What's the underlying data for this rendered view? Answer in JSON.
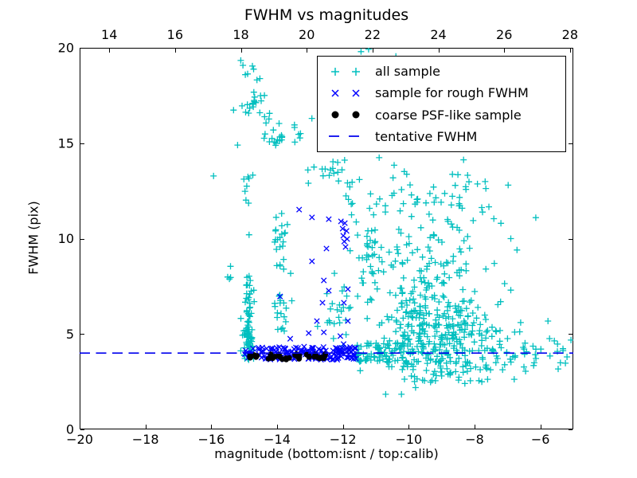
{
  "figure": {
    "title": "FWHM vs magnitudes",
    "xlabel": "magnitude (bottom:isnt / top:calib)",
    "ylabel": "FWHM (pix)",
    "background": "#ffffff"
  },
  "chart_data": {
    "type": "scatter",
    "title": "FWHM vs magnitudes",
    "xlabel": "magnitude (bottom:isnt / top:calib)",
    "ylabel": "FWHM (pix)",
    "xlim": [
      -20,
      -5
    ],
    "ylim": [
      0,
      20
    ],
    "grid": false,
    "bottom_xticks": [
      -20,
      -18,
      -16,
      -14,
      -12,
      -10,
      -8,
      -6
    ],
    "top_xticks": [
      14,
      16,
      18,
      20,
      22,
      24,
      26,
      28
    ],
    "top_axis_offset": 33.1,
    "yticks": [
      0,
      5,
      10,
      15,
      20
    ],
    "seed": 13,
    "legend": {
      "position": "upper right",
      "entries": [
        {
          "label": "all sample",
          "marker": "plus",
          "color": "#00bfbf"
        },
        {
          "label": "sample for rough FWHM",
          "marker": "cross",
          "color": "#0000ff"
        },
        {
          "label": "coarse PSF-like sample",
          "marker": "dot",
          "color": "#000000"
        },
        {
          "label": "tentative FWHM",
          "marker": "dash",
          "color": "#0000ee"
        }
      ]
    },
    "tentative_fwhm_line": {
      "y": 4.0,
      "color": "#0000ee",
      "dash": [
        13,
        7.5
      ]
    },
    "series": [
      {
        "name": "all sample",
        "marker": "plus",
        "color": "#00bfbf",
        "clusters": [
          {
            "shape": "gauss",
            "cx": -14.97,
            "cy": 18.85,
            "sx": 0.1,
            "sy": 0.28,
            "n": 6,
            "ymax": 19.95
          },
          {
            "shape": "gauss",
            "cx": -14.57,
            "cy": 18.2,
            "sx": 0.06,
            "sy": 0.14,
            "n": 2
          },
          {
            "shape": "gauss",
            "cx": -14.62,
            "cy": 17.35,
            "sx": 0.1,
            "sy": 0.16,
            "n": 9
          },
          {
            "shape": "gauss",
            "cx": -14.88,
            "cy": 16.8,
            "sx": 0.16,
            "sy": 0.12,
            "n": 8
          },
          {
            "shape": "gauss",
            "cx": -14.38,
            "cy": 16.4,
            "sx": 0.1,
            "sy": 0.14,
            "n": 5
          },
          {
            "shape": "gauss",
            "cx": -13.95,
            "cy": 15.45,
            "sx": 0.14,
            "sy": 0.3,
            "n": 10
          },
          {
            "shape": "gauss",
            "cx": -14.25,
            "cy": 15.15,
            "sx": 0.18,
            "sy": 0.2,
            "n": 6
          },
          {
            "shape": "gauss",
            "cx": -14.95,
            "cy": 12.55,
            "sx": 0.1,
            "sy": 0.55,
            "n": 8
          },
          {
            "shape": "gauss",
            "cx": -15.45,
            "cy": 8.1,
            "sx": 0.1,
            "sy": 0.4,
            "n": 4
          },
          {
            "shape": "gauss",
            "cx": -14.9,
            "cy": 6.2,
            "sx": 0.1,
            "sy": 1.35,
            "n": 45,
            "ymin": 3.65
          },
          {
            "shape": "gauss",
            "cx": -14.88,
            "cy": 4.55,
            "sx": 0.09,
            "sy": 0.4,
            "n": 40,
            "ymin": 3.65
          },
          {
            "shape": "gauss",
            "cx": -13.9,
            "cy": 9.9,
            "sx": 0.12,
            "sy": 1.0,
            "n": 22
          },
          {
            "shape": "gauss",
            "cx": -13.86,
            "cy": 5.9,
            "sx": 0.12,
            "sy": 0.85,
            "n": 18,
            "ymin": 3.7
          },
          {
            "shape": "gauss",
            "cx": -13.3,
            "cy": 15.7,
            "sx": 0.16,
            "sy": 0.35,
            "n": 7
          },
          {
            "shape": "gauss",
            "cx": -12.55,
            "cy": 13.8,
            "sx": 0.28,
            "sy": 0.5,
            "n": 9
          },
          {
            "shape": "gauss",
            "cx": -11.95,
            "cy": 13.55,
            "sx": 0.3,
            "sy": 0.4,
            "n": 8
          },
          {
            "shape": "gauss",
            "cx": -11.35,
            "cy": 12.2,
            "sx": 0.3,
            "sy": 0.4,
            "n": 8
          },
          {
            "shape": "gauss",
            "cx": -11.3,
            "cy": 8.5,
            "sx": 0.2,
            "sy": 1.4,
            "n": 30
          },
          {
            "shape": "gauss",
            "cx": -12.2,
            "cy": 6.0,
            "sx": 0.35,
            "sy": 0.95,
            "n": 25
          },
          {
            "shape": "gauss",
            "cx": -9.2,
            "cy": 5.0,
            "sx": 0.85,
            "sy": 1.25,
            "n": 270,
            "ymin": 1.9
          },
          {
            "shape": "gauss",
            "cx": -9.35,
            "cy": 8.6,
            "sx": 0.95,
            "sy": 1.5,
            "n": 115
          },
          {
            "shape": "gauss",
            "cx": -9.5,
            "cy": 12.3,
            "sx": 1.0,
            "sy": 1.2,
            "n": 45
          },
          {
            "shape": "uniform",
            "x0": -11.62,
            "x1": -10.0,
            "y0": 3.5,
            "y1": 4.55,
            "n": 80
          },
          {
            "shape": "gauss",
            "cx": -6.8,
            "cy": 4.1,
            "sx": 0.75,
            "sy": 0.55,
            "n": 50
          },
          {
            "shape": "uniform",
            "x0": -10.8,
            "x1": -6.6,
            "y0": 2.55,
            "y1": 3.6,
            "n": 40
          }
        ],
        "points": [
          [
            -15.93,
            13.28
          ],
          [
            -15.2,
            14.9
          ],
          [
            -11.45,
            19.8
          ],
          [
            -11.22,
            19.92
          ],
          [
            -10.39,
            19.55
          ],
          [
            -10.7,
            1.84
          ],
          [
            -10.22,
            1.84
          ],
          [
            -6.98,
            12.8
          ],
          [
            -6.14,
            11.1
          ],
          [
            -7.2,
            10.8
          ],
          [
            -6.9,
            10.0
          ],
          [
            -7.4,
            8.7
          ],
          [
            -6.9,
            7.3
          ],
          [
            -6.6,
            5.6
          ],
          [
            -5.77,
            5.68
          ],
          [
            -5.72,
            4.76
          ],
          [
            -5.48,
            4.47
          ],
          [
            -5.31,
            4.13
          ],
          [
            -5.19,
            3.8
          ],
          [
            -5.07,
            4.68
          ],
          [
            -5.24,
            3.47
          ],
          [
            -5.46,
            3.17
          ],
          [
            -6.45,
            3.05
          ],
          [
            -13.8,
            8.4
          ],
          [
            -13.05,
            12.9
          ]
        ]
      },
      {
        "name": "sample for rough FWHM",
        "marker": "cross",
        "color": "#0000ff",
        "clusters": [
          {
            "shape": "uniform",
            "x0": -15.02,
            "x1": -11.6,
            "y0": 3.65,
            "y1": 4.32,
            "n": 150
          }
        ],
        "points": [
          [
            -13.33,
            11.52
          ],
          [
            -12.94,
            11.11
          ],
          [
            -12.43,
            11.02
          ],
          [
            -12.06,
            10.9
          ],
          [
            -11.94,
            10.81
          ],
          [
            -12.01,
            10.52
          ],
          [
            -11.89,
            10.4
          ],
          [
            -11.99,
            10.15
          ],
          [
            -11.87,
            9.98
          ],
          [
            -11.96,
            9.85
          ],
          [
            -11.92,
            9.56
          ],
          [
            -12.5,
            9.48
          ],
          [
            -12.94,
            8.81
          ],
          [
            -13.91,
            6.97
          ],
          [
            -12.58,
            7.81
          ],
          [
            -12.43,
            7.27
          ],
          [
            -11.85,
            7.35
          ],
          [
            -12.62,
            6.64
          ],
          [
            -11.97,
            6.64
          ],
          [
            -12.79,
            5.68
          ],
          [
            -11.85,
            5.68
          ],
          [
            -13.04,
            5.05
          ],
          [
            -12.58,
            5.09
          ],
          [
            -12.08,
            4.89
          ],
          [
            -11.98,
            4.47
          ],
          [
            -13.18,
            4.34
          ],
          [
            -14.95,
            4.13
          ],
          [
            -11.65,
            4.26
          ],
          [
            -13.6,
            4.75
          ]
        ]
      },
      {
        "name": "coarse PSF-like sample",
        "marker": "dot",
        "color": "#000000",
        "clusters": [
          {
            "shape": "uniform",
            "x0": -14.95,
            "x1": -14.52,
            "y0": 3.68,
            "y1": 3.95,
            "n": 9
          },
          {
            "shape": "uniform",
            "x0": -14.28,
            "x1": -13.58,
            "y0": 3.66,
            "y1": 3.96,
            "n": 13
          },
          {
            "shape": "uniform",
            "x0": -13.5,
            "x1": -12.98,
            "y0": 3.68,
            "y1": 3.95,
            "n": 10
          },
          {
            "shape": "uniform",
            "x0": -12.9,
            "x1": -12.38,
            "y0": 3.68,
            "y1": 3.95,
            "n": 9
          }
        ],
        "points": []
      }
    ]
  }
}
